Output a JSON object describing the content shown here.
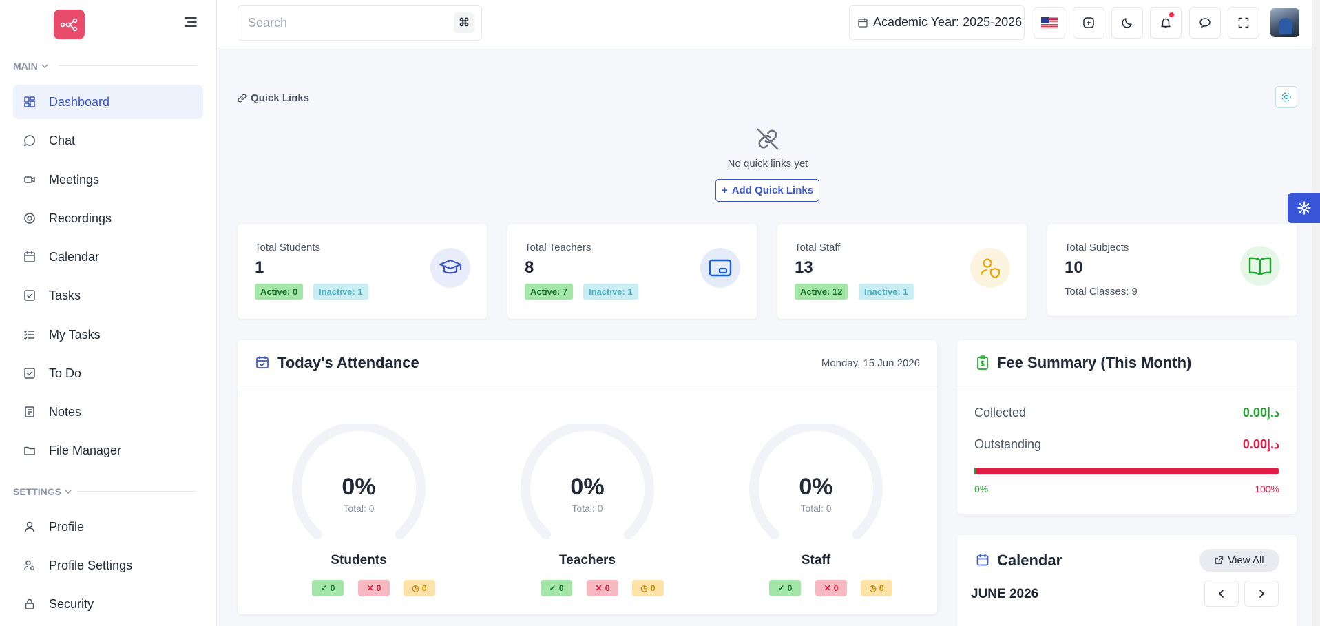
{
  "sidebar": {
    "sections": [
      {
        "label": "MAIN",
        "items": [
          {
            "label": "Dashboard",
            "icon": "dashboard-icon",
            "active": true
          },
          {
            "label": "Chat",
            "icon": "chat-icon"
          },
          {
            "label": "Meetings",
            "icon": "video-icon"
          },
          {
            "label": "Recordings",
            "icon": "record-icon"
          },
          {
            "label": "Calendar",
            "icon": "calendar-icon"
          },
          {
            "label": "Tasks",
            "icon": "task-check-icon"
          },
          {
            "label": "My Tasks",
            "icon": "list-check-icon"
          },
          {
            "label": "To Do",
            "icon": "todo-check-icon"
          },
          {
            "label": "Notes",
            "icon": "notes-icon"
          },
          {
            "label": "File Manager",
            "icon": "folder-icon"
          }
        ]
      },
      {
        "label": "SETTINGS",
        "items": [
          {
            "label": "Profile",
            "icon": "user-icon"
          },
          {
            "label": "Profile Settings",
            "icon": "user-cog-icon"
          },
          {
            "label": "Security",
            "icon": "lock-icon"
          }
        ]
      }
    ]
  },
  "topbar": {
    "search_placeholder": "Search",
    "search_shortcut": "⌘",
    "academic_year": "Academic Year: 2025-2026",
    "brand_color": "#e94b6b",
    "accent_color": "#3a57c7"
  },
  "quick_links": {
    "title": "Quick Links",
    "empty_text": "No quick links yet",
    "add_label": "Add Quick Links"
  },
  "stats": [
    {
      "label": "Total Students",
      "value": "1",
      "active": "Active: 0",
      "inactive": "Inactive: 1",
      "icon": "graduation-cap-icon"
    },
    {
      "label": "Total Teachers",
      "value": "8",
      "active": "Active: 7",
      "inactive": "Inactive: 1",
      "icon": "chalkboard-icon"
    },
    {
      "label": "Total Staff",
      "value": "13",
      "active": "Active: 12",
      "inactive": "Inactive: 1",
      "icon": "user-shield-icon"
    },
    {
      "label": "Total Subjects",
      "value": "10",
      "sub": "Total Classes: 9",
      "icon": "book-icon"
    }
  ],
  "attendance": {
    "title": "Today's Attendance",
    "date": "Monday, 15 Jun 2026",
    "groups": [
      {
        "name": "Students",
        "percent": "0%",
        "total": "Total: 0",
        "present": "0",
        "absent": "0",
        "late": "0"
      },
      {
        "name": "Teachers",
        "percent": "0%",
        "total": "Total: 0",
        "present": "0",
        "absent": "0",
        "late": "0"
      },
      {
        "name": "Staff",
        "percent": "0%",
        "total": "Total: 0",
        "present": "0",
        "absent": "0",
        "late": "0"
      }
    ]
  },
  "fee": {
    "title": "Fee Summary (This Month)",
    "collected_label": "Collected",
    "collected_value": "0.00د.إ",
    "outstanding_label": "Outstanding",
    "outstanding_value": "0.00د.إ",
    "collected_fraction": 0,
    "min_label": "0%",
    "max_label": "100%"
  },
  "calendar": {
    "title": "Calendar",
    "view_all": "View All",
    "month": "JUNE 2026"
  }
}
